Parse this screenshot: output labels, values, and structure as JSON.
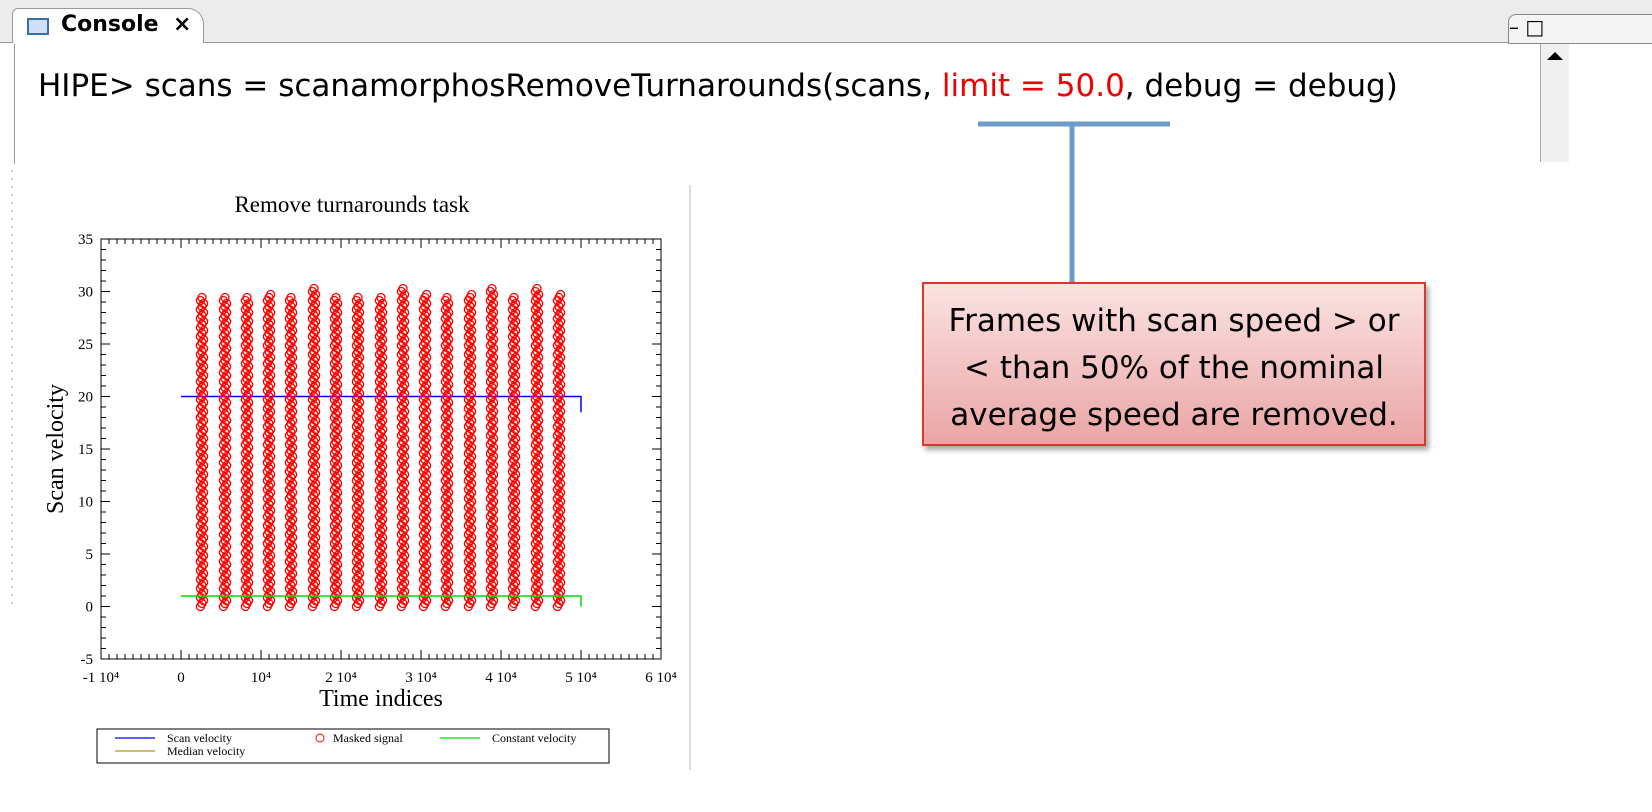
{
  "tab": {
    "label": "Console",
    "close": "×"
  },
  "console": {
    "command_parts": [
      "HIPE> scans = scanamorphosRemoveTurnarounds(scans, ",
      "limit = 50.0",
      ", debug = debug)"
    ]
  },
  "callout": {
    "lines": [
      "Frames with scan speed > or",
      "< than 50% of the nominal",
      "average speed are removed."
    ]
  },
  "chart_data": {
    "type": "scatter",
    "title": "Remove turnarounds task",
    "x_label": "Time indices",
    "y_label": "Scan velocity",
    "xlim": [
      -10000,
      60000
    ],
    "ylim": [
      -5,
      35
    ],
    "xticks": [
      {
        "value": -10000,
        "label": "-1 10⁴"
      },
      0,
      {
        "value": 10000,
        "label": "10⁴"
      },
      {
        "value": 20000,
        "label": "2 10⁴"
      },
      {
        "value": 30000,
        "label": "3 10⁴"
      },
      {
        "value": 40000,
        "label": "4 10⁴"
      },
      {
        "value": 50000,
        "label": "5 10⁴"
      },
      {
        "value": 60000,
        "label": "6 10⁴"
      }
    ],
    "yticks": [
      -5,
      0,
      5,
      10,
      15,
      20,
      25,
      30,
      35
    ],
    "legend": "bottom",
    "series": [
      {
        "name": "Scan velocity",
        "type": "line",
        "color": "#0000ff",
        "x": [
          0,
          50000,
          50000
        ],
        "values": [
          20,
          20,
          18.5
        ]
      },
      {
        "name": "Masked signal",
        "type": "scatter",
        "color": "#ff0000",
        "x": [
          2625,
          5500,
          8250,
          11000,
          13750,
          16625,
          19375,
          22125,
          25000,
          27750,
          30500,
          33250,
          36125,
          38875,
          41625,
          44500,
          47250
        ],
        "values": [
          29.5,
          29.5,
          29.7,
          29.8,
          29.6,
          30.5,
          29.7,
          29.6,
          29.7,
          30.5,
          29.8,
          29.5,
          29.8,
          30.3,
          29.7,
          30.3,
          29.8
        ]
      },
      {
        "name": "Constant velocity",
        "type": "line",
        "color": "#00dd00",
        "x": [
          0,
          50000,
          50000
        ],
        "values": [
          1,
          1,
          0
        ]
      },
      {
        "name": "Median velocity",
        "type": "line",
        "color": "#b09a10"
      }
    ]
  }
}
